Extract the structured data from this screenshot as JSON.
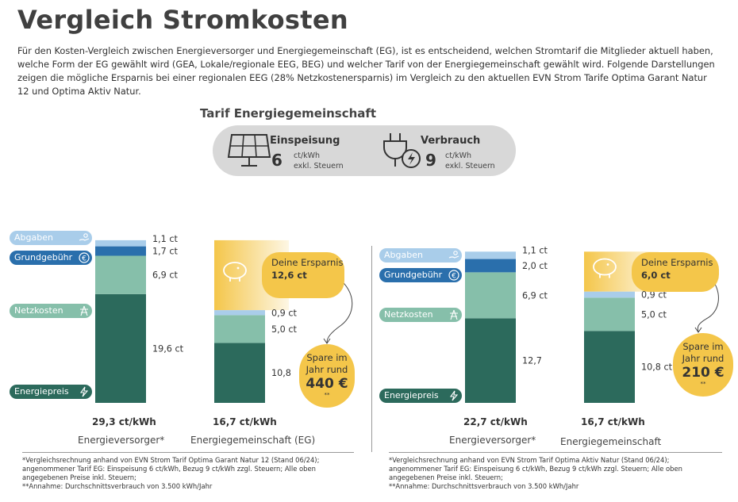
{
  "title": "Vergleich Stromkosten",
  "intro": "Für den Kosten-Vergleich zwischen Energieversorger und Energiegemeinschaft (EG), ist es entscheidend, welchen Stromtarif die Mitglieder aktuell haben, welche Form der EG gewählt wird (GEA, Lokale/regionale EEG, BEG) und welcher Tarif von der Energiegemeinschaft gewählt wird. Folgende Darstellungen zeigen die mögliche Ersparnis bei einer regionalen EEG (28% Netzkostenersparnis) im Vergleich zu den aktuellen EVN Strom Tarife Optima Garant Natur 12 und Optima Aktiv Natur.",
  "tariff": {
    "heading": "Tarif Energiegemeinschaft",
    "einspeisung": {
      "label": "Einspeisung",
      "value": "6",
      "unit": "ct/kWh",
      "note": "exkl. Steuern"
    },
    "verbrauch": {
      "label": "Verbrauch",
      "value": "9",
      "unit": "ct/kWh",
      "note": "exkl. Steuern"
    }
  },
  "colors": {
    "abgaben": "#a9cdea",
    "grundgebuehr": "#2a6fac",
    "netzkosten": "#86bfaa",
    "energiepreis": "#2c6a5c",
    "savings": "#f4c64a",
    "tariff_bg": "#d8d8d8"
  },
  "legend": {
    "abgaben": "Abgaben",
    "grundgebuehr": "Grundgebühr",
    "netzkosten": "Netzkosten",
    "energiepreis": "Energiepreis"
  },
  "chart_data": [
    {
      "type": "bar",
      "stacked": true,
      "unit": "ct/kWh",
      "categories": [
        "Energieversorger*",
        "Energiegemeinschaft (EG)"
      ],
      "series": [
        {
          "name": "Energiepreis",
          "values": [
            19.6,
            10.8
          ]
        },
        {
          "name": "Netzkosten",
          "values": [
            6.9,
            5.0
          ]
        },
        {
          "name": "Grundgebühr",
          "values": [
            1.7,
            0
          ]
        },
        {
          "name": "Abgaben",
          "values": [
            1.1,
            0.9
          ]
        }
      ],
      "segment_labels": [
        [
          "19,6 ct",
          "6,9 ct",
          "1,7 ct",
          "1,1 ct"
        ],
        [
          "10,8",
          "5,0 ct",
          "0,9 ct"
        ]
      ],
      "totals": [
        "29,3 ct/kWh",
        "16,7 ct/kWh"
      ],
      "savings": {
        "label": "Deine Ersparnis",
        "value": "12,6 ct",
        "yearly_text": "Spare im Jahr rund",
        "yearly_value": "440 €",
        "note": "**"
      },
      "footnote": [
        "*Vergleichsrechnung anhand von EVN Strom Tarif Optima Garant Natur 12 (Stand 06/24);",
        "angenommener Tarif EG: Einspeisung 6 ct/kWh, Bezug 9 ct/kWh zzgl. Steuern; Alle oben",
        "angegebenen Preise inkl. Steuern;",
        "**Annahme: Durchschnittsverbrauch von 3.500 kWh/Jahr"
      ]
    },
    {
      "type": "bar",
      "stacked": true,
      "unit": "ct/kWh",
      "categories": [
        "Energieversorger*",
        "Energiegemeinschaft"
      ],
      "series": [
        {
          "name": "Energiepreis",
          "values": [
            12.7,
            10.8
          ]
        },
        {
          "name": "Netzkosten",
          "values": [
            6.9,
            5.0
          ]
        },
        {
          "name": "Grundgebühr",
          "values": [
            2.0,
            0
          ]
        },
        {
          "name": "Abgaben",
          "values": [
            1.1,
            0.9
          ]
        }
      ],
      "segment_labels": [
        [
          "12,7",
          "6,9 ct",
          "2,0 ct",
          "1,1 ct"
        ],
        [
          "10,8 ct",
          "5,0 ct",
          "0,9 ct"
        ]
      ],
      "totals": [
        "22,7 ct/kWh",
        "16,7 ct/kWh"
      ],
      "savings": {
        "label": "Deine Ersparnis",
        "value": "6,0 ct",
        "yearly_text": "Spare im Jahr rund",
        "yearly_value": "210 €",
        "note": "**"
      },
      "footnote": [
        "*Vergleichsrechnung anhand von EVN Strom Tarif Optima Aktiv Natur (Stand 06/24);",
        "angenommener Tarif EG: Einspeisung 6 ct/kWh, Bezug 9 ct/kWh zzgl. Steuern; Alle oben",
        "angegebenen Preise inkl. Steuern;",
        "**Annahme: Durchschnittsverbrauch von 3.500 kWh/Jahr"
      ]
    }
  ]
}
